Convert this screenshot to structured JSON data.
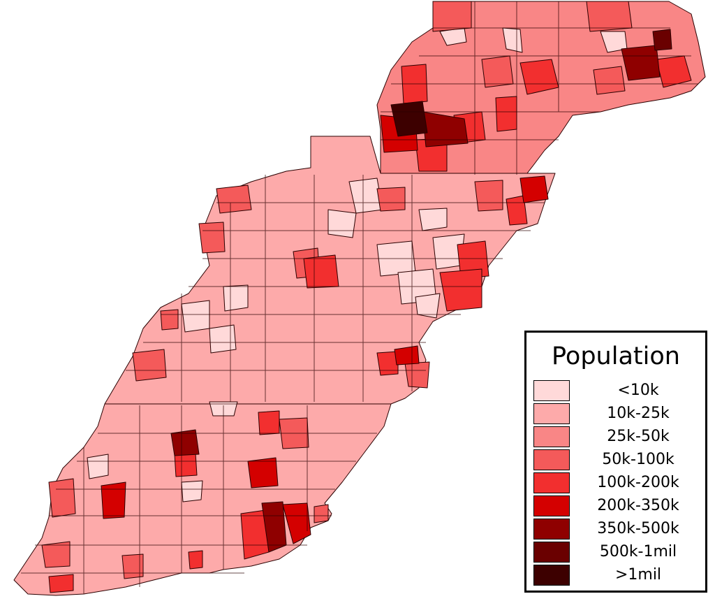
{
  "map": {
    "title": "Population",
    "legend": [
      {
        "label": "<10k",
        "color": "#ffd9d9"
      },
      {
        "label": "10k-25k",
        "color": "#fdaaaa"
      },
      {
        "label": "25k-50k",
        "color": "#f98686"
      },
      {
        "label": "50k-100k",
        "color": "#f45a5a"
      },
      {
        "label": "100k-200k",
        "color": "#f22f2f"
      },
      {
        "label": "200k-350k",
        "color": "#d40000"
      },
      {
        "label": "350k-500k",
        "color": "#8f0000"
      },
      {
        "label": "500k-1mil",
        "color": "#6a0000"
      },
      {
        "label": ">1mil",
        "color": "#3d0000"
      }
    ],
    "background_color": "#ffffff",
    "border_color": "#2a0000"
  }
}
